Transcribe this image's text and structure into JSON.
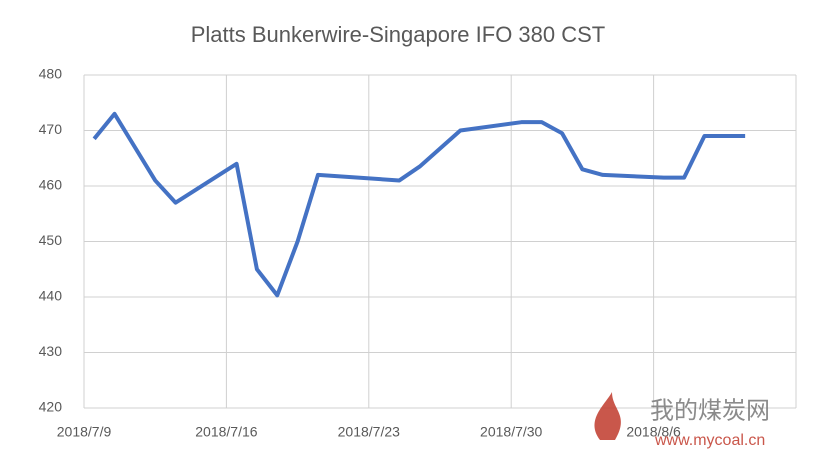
{
  "chart_data": {
    "type": "line",
    "title": "Platts Bunkerwire-Singapore IFO 380 CST",
    "x": [
      "2018/7/9",
      "2018/7/10",
      "2018/7/12",
      "2018/7/13",
      "2018/7/16",
      "2018/7/17",
      "2018/7/18",
      "2018/7/19",
      "2018/7/20",
      "2018/7/24",
      "2018/7/25",
      "2018/7/27",
      "2018/7/30",
      "2018/7/31",
      "2018/8/1",
      "2018/8/2",
      "2018/8/3",
      "2018/8/6",
      "2018/8/7",
      "2018/8/8",
      "2018/8/10"
    ],
    "values": [
      468.5,
      473,
      461,
      457,
      464,
      445,
      440.3,
      450,
      462,
      461,
      463.5,
      470,
      471.5,
      471.5,
      469.5,
      463,
      462,
      461.5,
      461.5,
      469,
      469
    ],
    "color": "#4472c4",
    "xlim": [
      "2018/7/9",
      "2018/8/13"
    ],
    "xticks": [
      "2018/7/9",
      "2018/7/16",
      "2018/7/23",
      "2018/7/30",
      "2018/8/6"
    ],
    "ylim": [
      420,
      480
    ],
    "yticks": [
      420,
      430,
      440,
      450,
      460,
      470,
      480
    ],
    "grid": true,
    "watermark": {
      "name": "我的煤炭网",
      "url": "www.mycoal.cn"
    }
  }
}
